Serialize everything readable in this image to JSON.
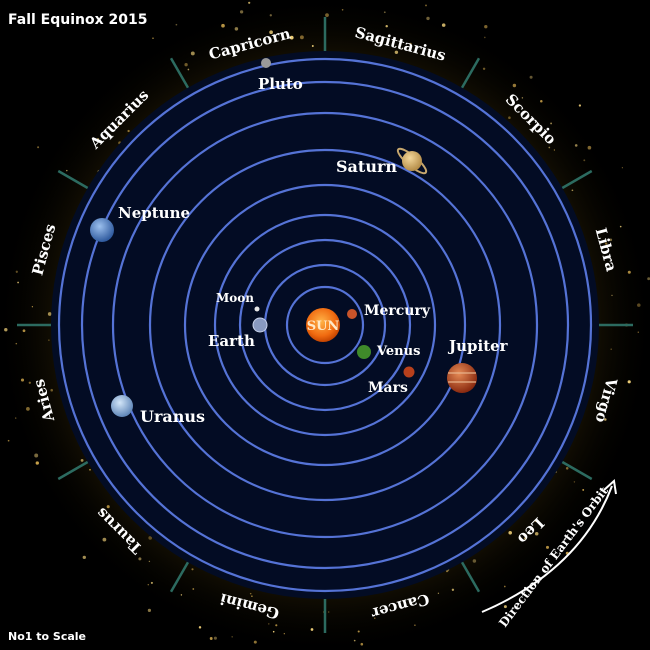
{
  "title": "Fall Equinox 2015",
  "footnote": "No1 to Scale",
  "sun_label": "SUN",
  "orbit_direction_label": "Direction of Earth's Orbit",
  "colors": {
    "background": "#000000",
    "disc": "#030c24",
    "orbit": "#5573d6",
    "tick": "#2c6b60",
    "text": "#ffffff",
    "sun": "#f06a10"
  },
  "zodiac": [
    "Capricorn",
    "Sagittarius",
    "Scorpio",
    "Libra",
    "Virgo",
    "Leo",
    "Cancer",
    "Gemini",
    "Taurus",
    "Aries",
    "Pisces",
    "Aquarius"
  ],
  "bodies": [
    {
      "name": "Mercury",
      "label": "Mercury",
      "icon": "mercury-icon",
      "color": "#c9542a"
    },
    {
      "name": "Venus",
      "label": "Venus",
      "icon": "venus-icon",
      "color": "#3f8a2a"
    },
    {
      "name": "Earth",
      "label": "Earth",
      "icon": "earth-icon",
      "color": "#8899c0"
    },
    {
      "name": "Moon",
      "label": "Moon",
      "icon": "moon-icon",
      "color": "#e6e6e6"
    },
    {
      "name": "Mars",
      "label": "Mars",
      "icon": "mars-icon",
      "color": "#b8401c"
    },
    {
      "name": "Jupiter",
      "label": "Jupiter",
      "icon": "jupiter-icon",
      "color": "#b5451e"
    },
    {
      "name": "Saturn",
      "label": "Saturn",
      "icon": "saturn-icon",
      "color": "#d9b26a"
    },
    {
      "name": "Uranus",
      "label": "Uranus",
      "icon": "uranus-icon",
      "color": "#8fb4dc"
    },
    {
      "name": "Neptune",
      "label": "Neptune",
      "icon": "neptune-icon",
      "color": "#4f7fc4"
    },
    {
      "name": "Pluto",
      "label": "Pluto",
      "icon": "pluto-icon",
      "color": "#9a9a9a"
    }
  ]
}
